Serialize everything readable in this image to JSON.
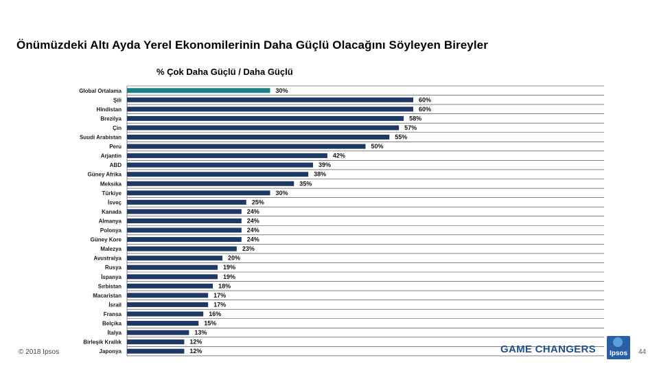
{
  "header": {
    "title": "Önümüzdeki Altı Ayda Yerel Ekonomilerinin Daha Güçlü Olacağını Söyleyen Bireyler"
  },
  "footer": {
    "copyright": "© 2018 Ipsos",
    "brand": "GAME CHANGERS",
    "logo_text": "Ipsos",
    "page_number": "44"
  },
  "colors": {
    "highlight_bar": "#1b7f86",
    "bar": "#1f3864",
    "gridline": "#333333"
  },
  "chart_data": {
    "type": "bar",
    "orientation": "horizontal",
    "title": "% Çok Daha Güçlü / Daha Güçlü",
    "xlim": [
      0,
      100
    ],
    "unit": "%",
    "highlight_category": "Global Ortalama",
    "categories": [
      "Global Ortalama",
      "Şili",
      "Hindistan",
      "Brezilya",
      "Çin",
      "Suudi Arabistan",
      "Peru",
      "Arjantin",
      "ABD",
      "Güney Afrika",
      "Meksika",
      "Türkiye",
      "İsveç",
      "Kanada",
      "Almanya",
      "Polonya",
      "Güney Kore",
      "Malezya",
      "Avustralya",
      "Rusya",
      "İspanya",
      "Sırbistan",
      "Macaristan",
      "İsrail",
      "Fransa",
      "Belçika",
      "İtalya",
      "Birleşik Krallık",
      "Japonya"
    ],
    "values": [
      30,
      60,
      60,
      58,
      57,
      55,
      50,
      42,
      39,
      38,
      35,
      30,
      25,
      24,
      24,
      24,
      24,
      23,
      20,
      19,
      19,
      18,
      17,
      17,
      16,
      15,
      13,
      12,
      12
    ],
    "labels": [
      "30%",
      "60%",
      "60%",
      "58%",
      "57%",
      "55%",
      "50%",
      "42%",
      "39%",
      "38%",
      "35%",
      "30%",
      "25%",
      "24%",
      "24%",
      "24%",
      "24%",
      "23%",
      "20%",
      "19%",
      "19%",
      "18%",
      "17%",
      "17%",
      "16%",
      "15%",
      "13%",
      "12%",
      "12%"
    ]
  }
}
